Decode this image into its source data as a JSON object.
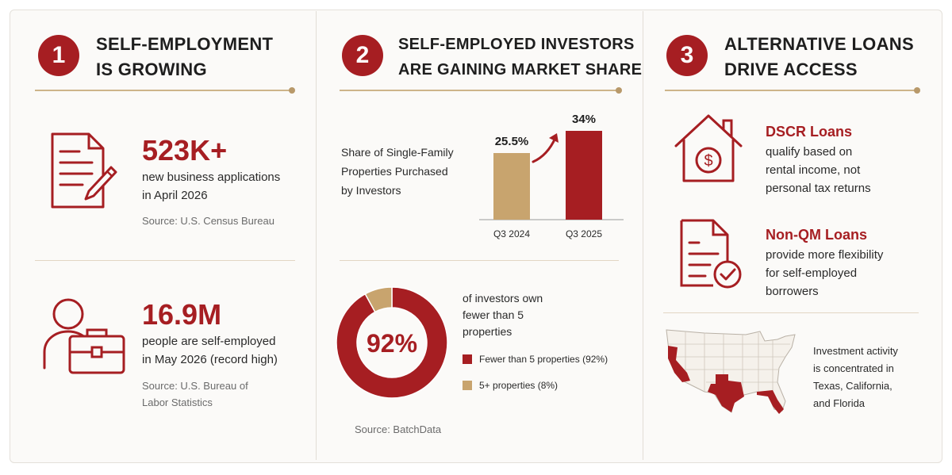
{
  "colors": {
    "accent": "#a61e22",
    "tan": "#c8a46e",
    "rule": "#cdb48a"
  },
  "col1": {
    "number": "1",
    "title_line1": "SELF-EMPLOYMENT",
    "title_line2": "IS GROWING",
    "stat1": {
      "value": "523K+",
      "line1": "new business applications",
      "line2": "in April 2026",
      "source": "Source: U.S. Census Bureau",
      "icon": "document-pencil-icon"
    },
    "stat2": {
      "value": "16.9M",
      "line1": "people are self-employed",
      "line2": "in May 2026 (record high)",
      "source_line1": "Source: U.S. Bureau of",
      "source_line2": "Labor Statistics",
      "icon": "person-briefcase-icon"
    }
  },
  "col2": {
    "number": "2",
    "title_line1": "SELF-EMPLOYED INVESTORS",
    "title_line2": "ARE GAINING MARKET SHARE",
    "bar_caption_line1": "Share of Single-Family",
    "bar_caption_line2": "Properties Purchased",
    "bar_caption_line3": "by Investors",
    "donut_center": "92%",
    "donut_text_line1": "of investors own",
    "donut_text_line2": "fewer than 5",
    "donut_text_line3": "properties",
    "legend1": "Fewer than 5 properties (92%)",
    "legend2": "5+ properties (8%)",
    "source": "Source: BatchData"
  },
  "chart_data": [
    {
      "type": "bar",
      "categories": [
        "Q3 2024",
        "Q3 2025"
      ],
      "values": [
        25.5,
        34
      ],
      "value_labels": [
        "25.5%",
        "34%"
      ],
      "colors": [
        "#c8a46e",
        "#a61e22"
      ],
      "unit": "%"
    },
    {
      "type": "pie",
      "labels": [
        "Fewer than 5 properties (92%)",
        "5+ properties (8%)"
      ],
      "values": [
        92,
        8
      ],
      "colors": [
        "#a61e22",
        "#c8a46e"
      ],
      "center_label": "92%"
    }
  ],
  "col3": {
    "number": "3",
    "title_line1": "ALTERNATIVE LOANS",
    "title_line2": "DRIVE ACCESS",
    "item1": {
      "title": "DSCR Loans",
      "line1": "qualify based on",
      "line2": "rental income, not",
      "line3": "personal tax returns",
      "icon": "house-dollar-icon"
    },
    "item2": {
      "title": "Non-QM Loans",
      "line1": "provide more flexibility",
      "line2": "for self-employed",
      "line3": "borrowers",
      "icon": "document-check-icon"
    },
    "map": {
      "line1": "Investment activity",
      "line2": "is concentrated in",
      "line3": "Texas, California,",
      "line4": "and Florida",
      "icon": "us-map-icon"
    }
  }
}
